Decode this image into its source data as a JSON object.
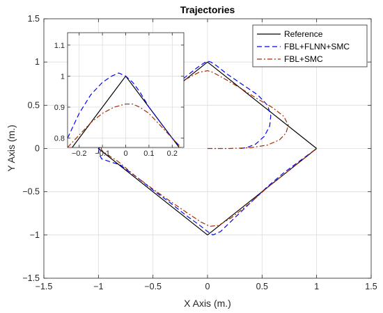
{
  "chart_data": [
    {
      "id": "main",
      "type": "line",
      "title": "Trajectories",
      "xlabel": "X Axis (m.)",
      "ylabel": "Y Axis (m.)",
      "xlim": [
        -1.5,
        1.5
      ],
      "ylim": [
        -1.5,
        1.5
      ],
      "xticks": [
        -1.5,
        -1,
        -0.5,
        0,
        0.5,
        1,
        1.5
      ],
      "yticks": [
        -1.5,
        -1,
        -0.5,
        0,
        0.5,
        1,
        1.5
      ],
      "xtick_labels": [
        "−1.5",
        "−1",
        "−0.5",
        "0",
        "0.5",
        "1",
        "1.5"
      ],
      "ytick_labels": [
        "−1.5",
        "−1",
        "−0.5",
        "0",
        "0.5",
        "1",
        "1.5"
      ],
      "grid": true,
      "legend_position": "top-right",
      "series": [
        {
          "name": "Reference",
          "color": "#000000",
          "style": "solid",
          "x": [
            1,
            0,
            -1,
            0,
            1
          ],
          "y": [
            0,
            1,
            0,
            -1,
            0
          ]
        },
        {
          "name": "FBL+FLNN+SMC",
          "color": "#0000ff",
          "style": "dashed",
          "x": [
            0.3,
            0.36,
            0.44,
            0.52,
            0.57,
            0.58,
            0.55,
            0.46,
            0.32,
            0.18,
            0.08,
            0.03,
            0.0,
            -0.03,
            -0.1,
            -0.2,
            -0.35,
            -0.5,
            -0.65,
            -0.8,
            -0.92,
            -0.99,
            -1.0,
            -0.97,
            -0.9,
            -0.8,
            -0.65,
            -0.5,
            -0.35,
            -0.2,
            -0.08,
            0.0,
            0.05,
            0.12,
            0.25,
            0.4,
            0.55,
            0.7,
            0.85,
            1.0
          ],
          "y": [
            0.0,
            0.01,
            0.05,
            0.14,
            0.26,
            0.38,
            0.5,
            0.62,
            0.74,
            0.86,
            0.96,
            1.0,
            1.01,
            0.99,
            0.93,
            0.83,
            0.67,
            0.52,
            0.37,
            0.23,
            0.11,
            0.03,
            -0.05,
            -0.12,
            -0.15,
            -0.19,
            -0.33,
            -0.48,
            -0.62,
            -0.77,
            -0.88,
            -0.96,
            -1.0,
            -0.96,
            -0.8,
            -0.62,
            -0.44,
            -0.28,
            -0.14,
            0.0
          ]
        },
        {
          "name": "FBL+SMC",
          "color": "#a52a00",
          "style": "dashdot",
          "x": [
            0.0,
            0.2,
            0.4,
            0.55,
            0.66,
            0.72,
            0.74,
            0.7,
            0.6,
            0.45,
            0.3,
            0.15,
            0.05,
            0.0,
            -0.08,
            -0.2,
            -0.35,
            -0.5,
            -0.65,
            -0.8,
            -0.92,
            -0.98,
            -0.97,
            -0.92,
            -0.82,
            -0.67,
            -0.5,
            -0.33,
            -0.18,
            -0.06,
            0.02,
            0.1,
            0.22,
            0.4,
            0.55,
            0.7,
            0.85,
            1.0
          ],
          "y": [
            0.0,
            0.0,
            0.01,
            0.04,
            0.1,
            0.18,
            0.27,
            0.37,
            0.47,
            0.58,
            0.7,
            0.81,
            0.88,
            0.9,
            0.88,
            0.8,
            0.67,
            0.53,
            0.38,
            0.24,
            0.12,
            0.04,
            -0.02,
            -0.07,
            -0.15,
            -0.31,
            -0.47,
            -0.62,
            -0.75,
            -0.85,
            -0.9,
            -0.89,
            -0.8,
            -0.62,
            -0.45,
            -0.3,
            -0.15,
            0.0
          ]
        }
      ]
    },
    {
      "id": "inset",
      "type": "line",
      "title": "",
      "xlim": [
        -0.25,
        0.25
      ],
      "ylim": [
        0.77,
        1.14
      ],
      "xticks": [
        -0.2,
        -0.1,
        0,
        0.1,
        0.2
      ],
      "yticks": [
        0.8,
        0.9,
        1,
        1.1
      ],
      "xtick_labels": [
        "−0.2",
        "−0.1",
        "0",
        "0.1",
        "0.2"
      ],
      "ytick_labels": [
        "0.8",
        "0.9",
        "1",
        "1.1"
      ],
      "grid": true,
      "series": [
        {
          "name": "Reference",
          "color": "#000000",
          "style": "solid",
          "x": [
            -0.25,
            0,
            0.25
          ],
          "y": [
            0.75,
            1.0,
            0.75
          ]
        },
        {
          "name": "FBL+FLNN+SMC",
          "color": "#0000ff",
          "style": "dashed",
          "x": [
            -0.25,
            -0.2,
            -0.15,
            -0.1,
            -0.06,
            -0.03,
            0.0,
            0.03,
            0.06,
            0.1,
            0.15,
            0.2,
            0.25
          ],
          "y": [
            0.8,
            0.88,
            0.94,
            0.98,
            1.0,
            1.01,
            1.0,
            0.98,
            0.95,
            0.9,
            0.85,
            0.8,
            0.76
          ]
        },
        {
          "name": "FBL+SMC",
          "color": "#a52a00",
          "style": "dashdot",
          "x": [
            -0.25,
            -0.2,
            -0.15,
            -0.1,
            -0.05,
            0.0,
            0.03,
            0.06,
            0.1,
            0.15,
            0.2,
            0.25
          ],
          "y": [
            0.77,
            0.81,
            0.85,
            0.88,
            0.9,
            0.91,
            0.91,
            0.9,
            0.88,
            0.84,
            0.8,
            0.76
          ]
        }
      ]
    }
  ]
}
